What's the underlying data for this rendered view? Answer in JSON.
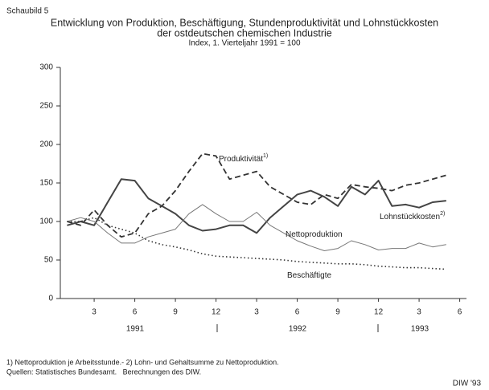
{
  "chart_data": {
    "type": "line",
    "figure_label": "Schaubild 5",
    "title": "Entwicklung von Produktion, Beschäftigung, Stundenproduktivität und Lohnstückkosten",
    "title_line2": "der ostdeutschen chemischen Industrie",
    "subtitle": "Index, 1. Vierteljahr 1991 = 100",
    "x": [
      1,
      2,
      3,
      4,
      5,
      6,
      7,
      8,
      9,
      10,
      11,
      12,
      13,
      14,
      15,
      16,
      17,
      18,
      19,
      20,
      21,
      22,
      23,
      24,
      25,
      26,
      27,
      28,
      29
    ],
    "xlim": [
      0.5,
      30.5
    ],
    "xticks": [
      3,
      6,
      9,
      12,
      {
        "value": 15,
        "label": "3"
      },
      {
        "value": 18,
        "label": "6"
      },
      {
        "value": 21,
        "label": "9"
      },
      {
        "value": 24,
        "label": "12"
      },
      {
        "value": 27,
        "label": "3"
      },
      {
        "value": 30,
        "label": "6"
      }
    ],
    "year_labels": [
      "1991",
      "1992",
      "1993"
    ],
    "ylim": [
      0,
      300
    ],
    "yticks": [
      0,
      50,
      100,
      150,
      200,
      250,
      300
    ],
    "grid": false,
    "series": [
      {
        "name": "Produktivität",
        "note_marker": "1)",
        "color": "#333333",
        "line_style": "dashed",
        "width": 1.8,
        "values": [
          100,
          95,
          115,
          95,
          80,
          85,
          110,
          120,
          140,
          165,
          188,
          185,
          155,
          160,
          165,
          145,
          135,
          125,
          122,
          135,
          130,
          148,
          145,
          143,
          140,
          147,
          150,
          155,
          160
        ]
      },
      {
        "name": "Lohnstückkosten",
        "note_marker": "2)",
        "color": "#444444",
        "line_style": "solid",
        "width": 2,
        "values": [
          95,
          100,
          95,
          125,
          155,
          153,
          130,
          120,
          110,
          95,
          88,
          90,
          95,
          95,
          85,
          105,
          120,
          135,
          140,
          132,
          120,
          145,
          135,
          153,
          120,
          122,
          118,
          125,
          127
        ]
      },
      {
        "name": "Nettoproduktion",
        "color": "#777777",
        "line_style": "solid",
        "width": 1,
        "values": [
          100,
          105,
          100,
          85,
          72,
          72,
          80,
          85,
          90,
          110,
          122,
          110,
          100,
          100,
          112,
          95,
          85,
          75,
          68,
          62,
          65,
          75,
          70,
          63,
          65,
          65,
          72,
          67,
          70
        ]
      },
      {
        "name": "Beschäftigte",
        "color": "#333333",
        "line_style": "dotted",
        "width": 1.6,
        "values": [
          100,
          100,
          105,
          95,
          90,
          85,
          75,
          70,
          67,
          63,
          58,
          55,
          54,
          53,
          52,
          51,
          50,
          48,
          47,
          46,
          45,
          45,
          44,
          42,
          41,
          40,
          40,
          39,
          38
        ]
      }
    ],
    "footnote1": "1) Nettoproduktion je Arbeitsstunde.- 2) Lohn- und Gehaltsumme zu Nettoproduktion.",
    "footnote2": "Quellen: Statistisches Bundesamt.   Berechnungen des DIW.",
    "source": "DIW '93"
  }
}
